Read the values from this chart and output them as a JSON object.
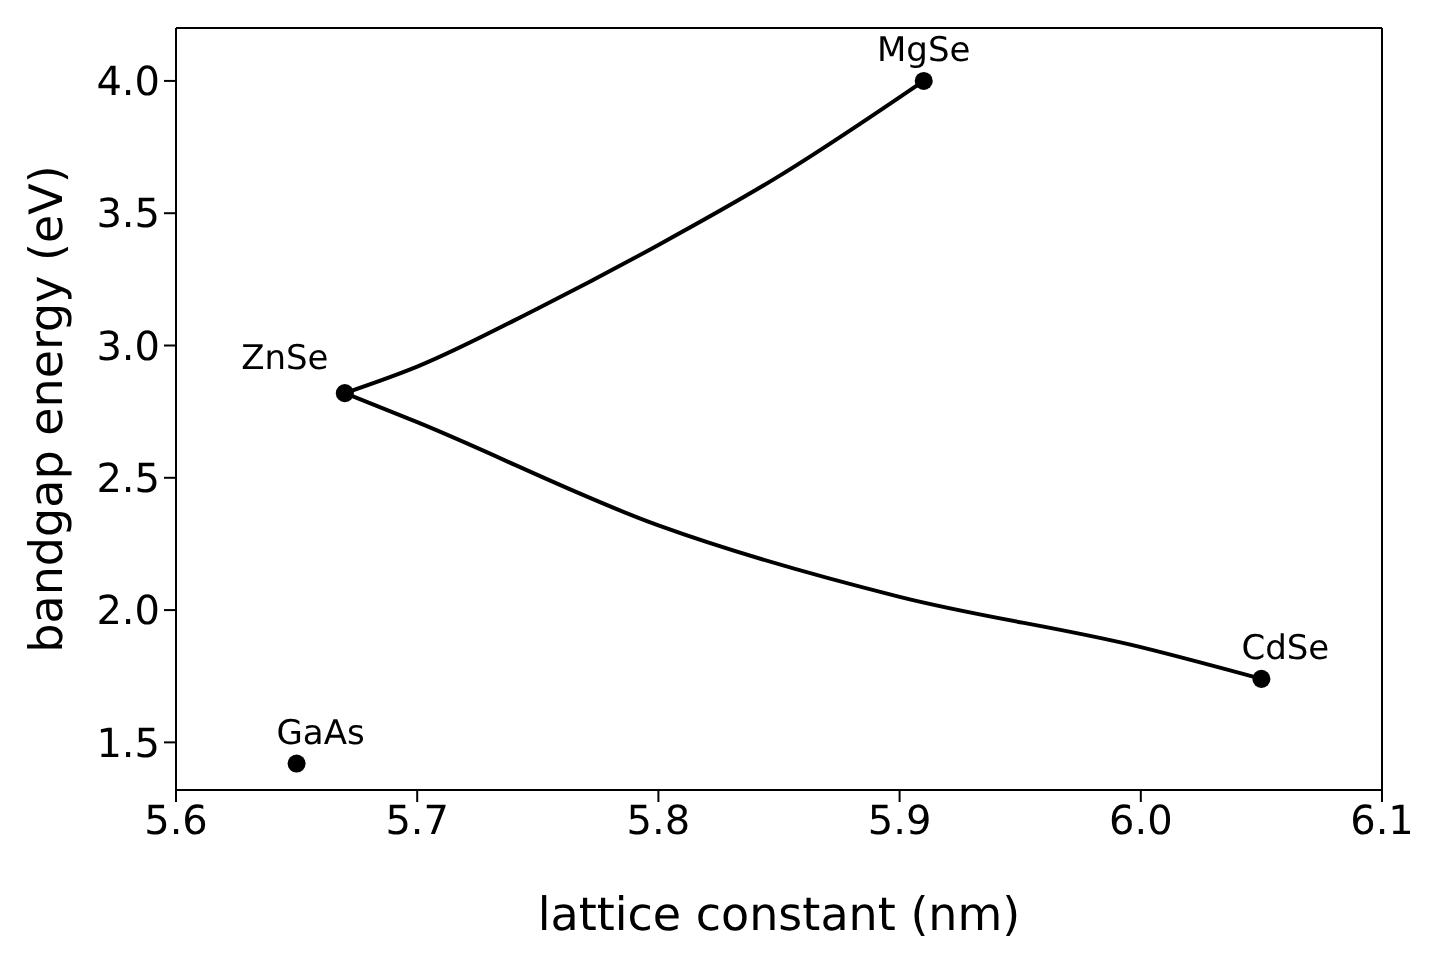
{
  "chart_data": {
    "type": "scatter",
    "xlabel": "lattice constant (nm)",
    "ylabel": "bandgap energy (eV)",
    "xlim": [
      5.6,
      6.1
    ],
    "xticks": [
      5.6,
      5.7,
      5.8,
      5.9,
      {
        "value": 6,
        "label": "6.0"
      },
      6.1
    ],
    "ylim": [
      1.32,
      4.2
    ],
    "yticks": [
      1.5,
      {
        "value": 2,
        "label": "2.0"
      },
      2.5,
      {
        "value": 3,
        "label": "3.0"
      },
      3.5,
      {
        "value": 4,
        "label": "4.0"
      }
    ],
    "grid": false,
    "legend": false,
    "series": [
      {
        "type": "line",
        "color": "#000000",
        "marker": "none",
        "x": [
          5.67,
          5.7,
          5.75,
          5.8,
          5.85,
          5.91
        ],
        "values": [
          2.82,
          2.92,
          3.14,
          3.38,
          3.64,
          4.0
        ]
      },
      {
        "type": "line",
        "color": "#000000",
        "marker": "none",
        "x": [
          5.67,
          5.7,
          5.8,
          5.9,
          6.0,
          6.05
        ],
        "values": [
          2.82,
          2.71,
          2.32,
          2.05,
          1.86,
          1.74
        ]
      },
      {
        "color": "#000000",
        "marker": "circle",
        "x": [
          5.91,
          5.67,
          6.05,
          5.65
        ],
        "values": [
          4.0,
          2.82,
          1.74,
          1.42
        ]
      }
    ],
    "annotations": [
      {
        "text": "MgSe",
        "x": 5.91,
        "y": 4.0
      },
      {
        "text": "ZnSe",
        "x": 5.67,
        "y": 2.82
      },
      {
        "text": "CdSe",
        "x": 6.05,
        "y": 1.74
      },
      {
        "text": "GaAs",
        "x": 5.65,
        "y": 1.42
      }
    ]
  }
}
